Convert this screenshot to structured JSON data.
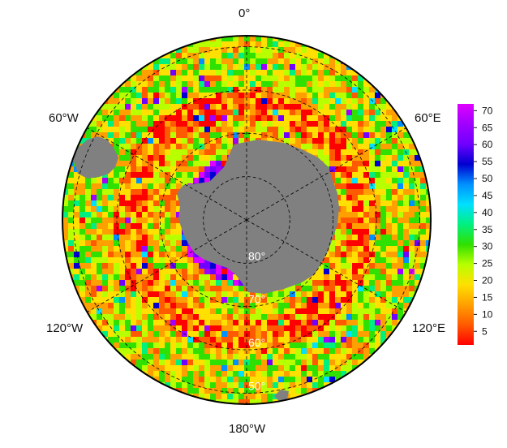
{
  "map": {
    "projection": "south-polar-stereographic",
    "colormap": [
      "#ff0000",
      "#ff5a00",
      "#ffa000",
      "#ffe000",
      "#b8ff00",
      "#30e000",
      "#00f080",
      "#00e0ff",
      "#0090ff",
      "#0000d0",
      "#7000ff",
      "#a000ff",
      "#e000ff"
    ],
    "land_color": "#808080",
    "longitude_labels": {
      "top": "0°",
      "upper_left": "60°W",
      "upper_right": "60°E",
      "lower_left": "120°W",
      "lower_right": "120°E",
      "bottom": "180°W"
    },
    "latitude_labels": [
      "80°",
      "70°",
      "60°",
      "50°"
    ]
  },
  "colorbar": {
    "ticks": [
      "70",
      "65",
      "60",
      "55",
      "50",
      "45",
      "40",
      "35",
      "30",
      "25",
      "20",
      "15",
      "10",
      "5"
    ],
    "min": 1,
    "max": 72
  }
}
